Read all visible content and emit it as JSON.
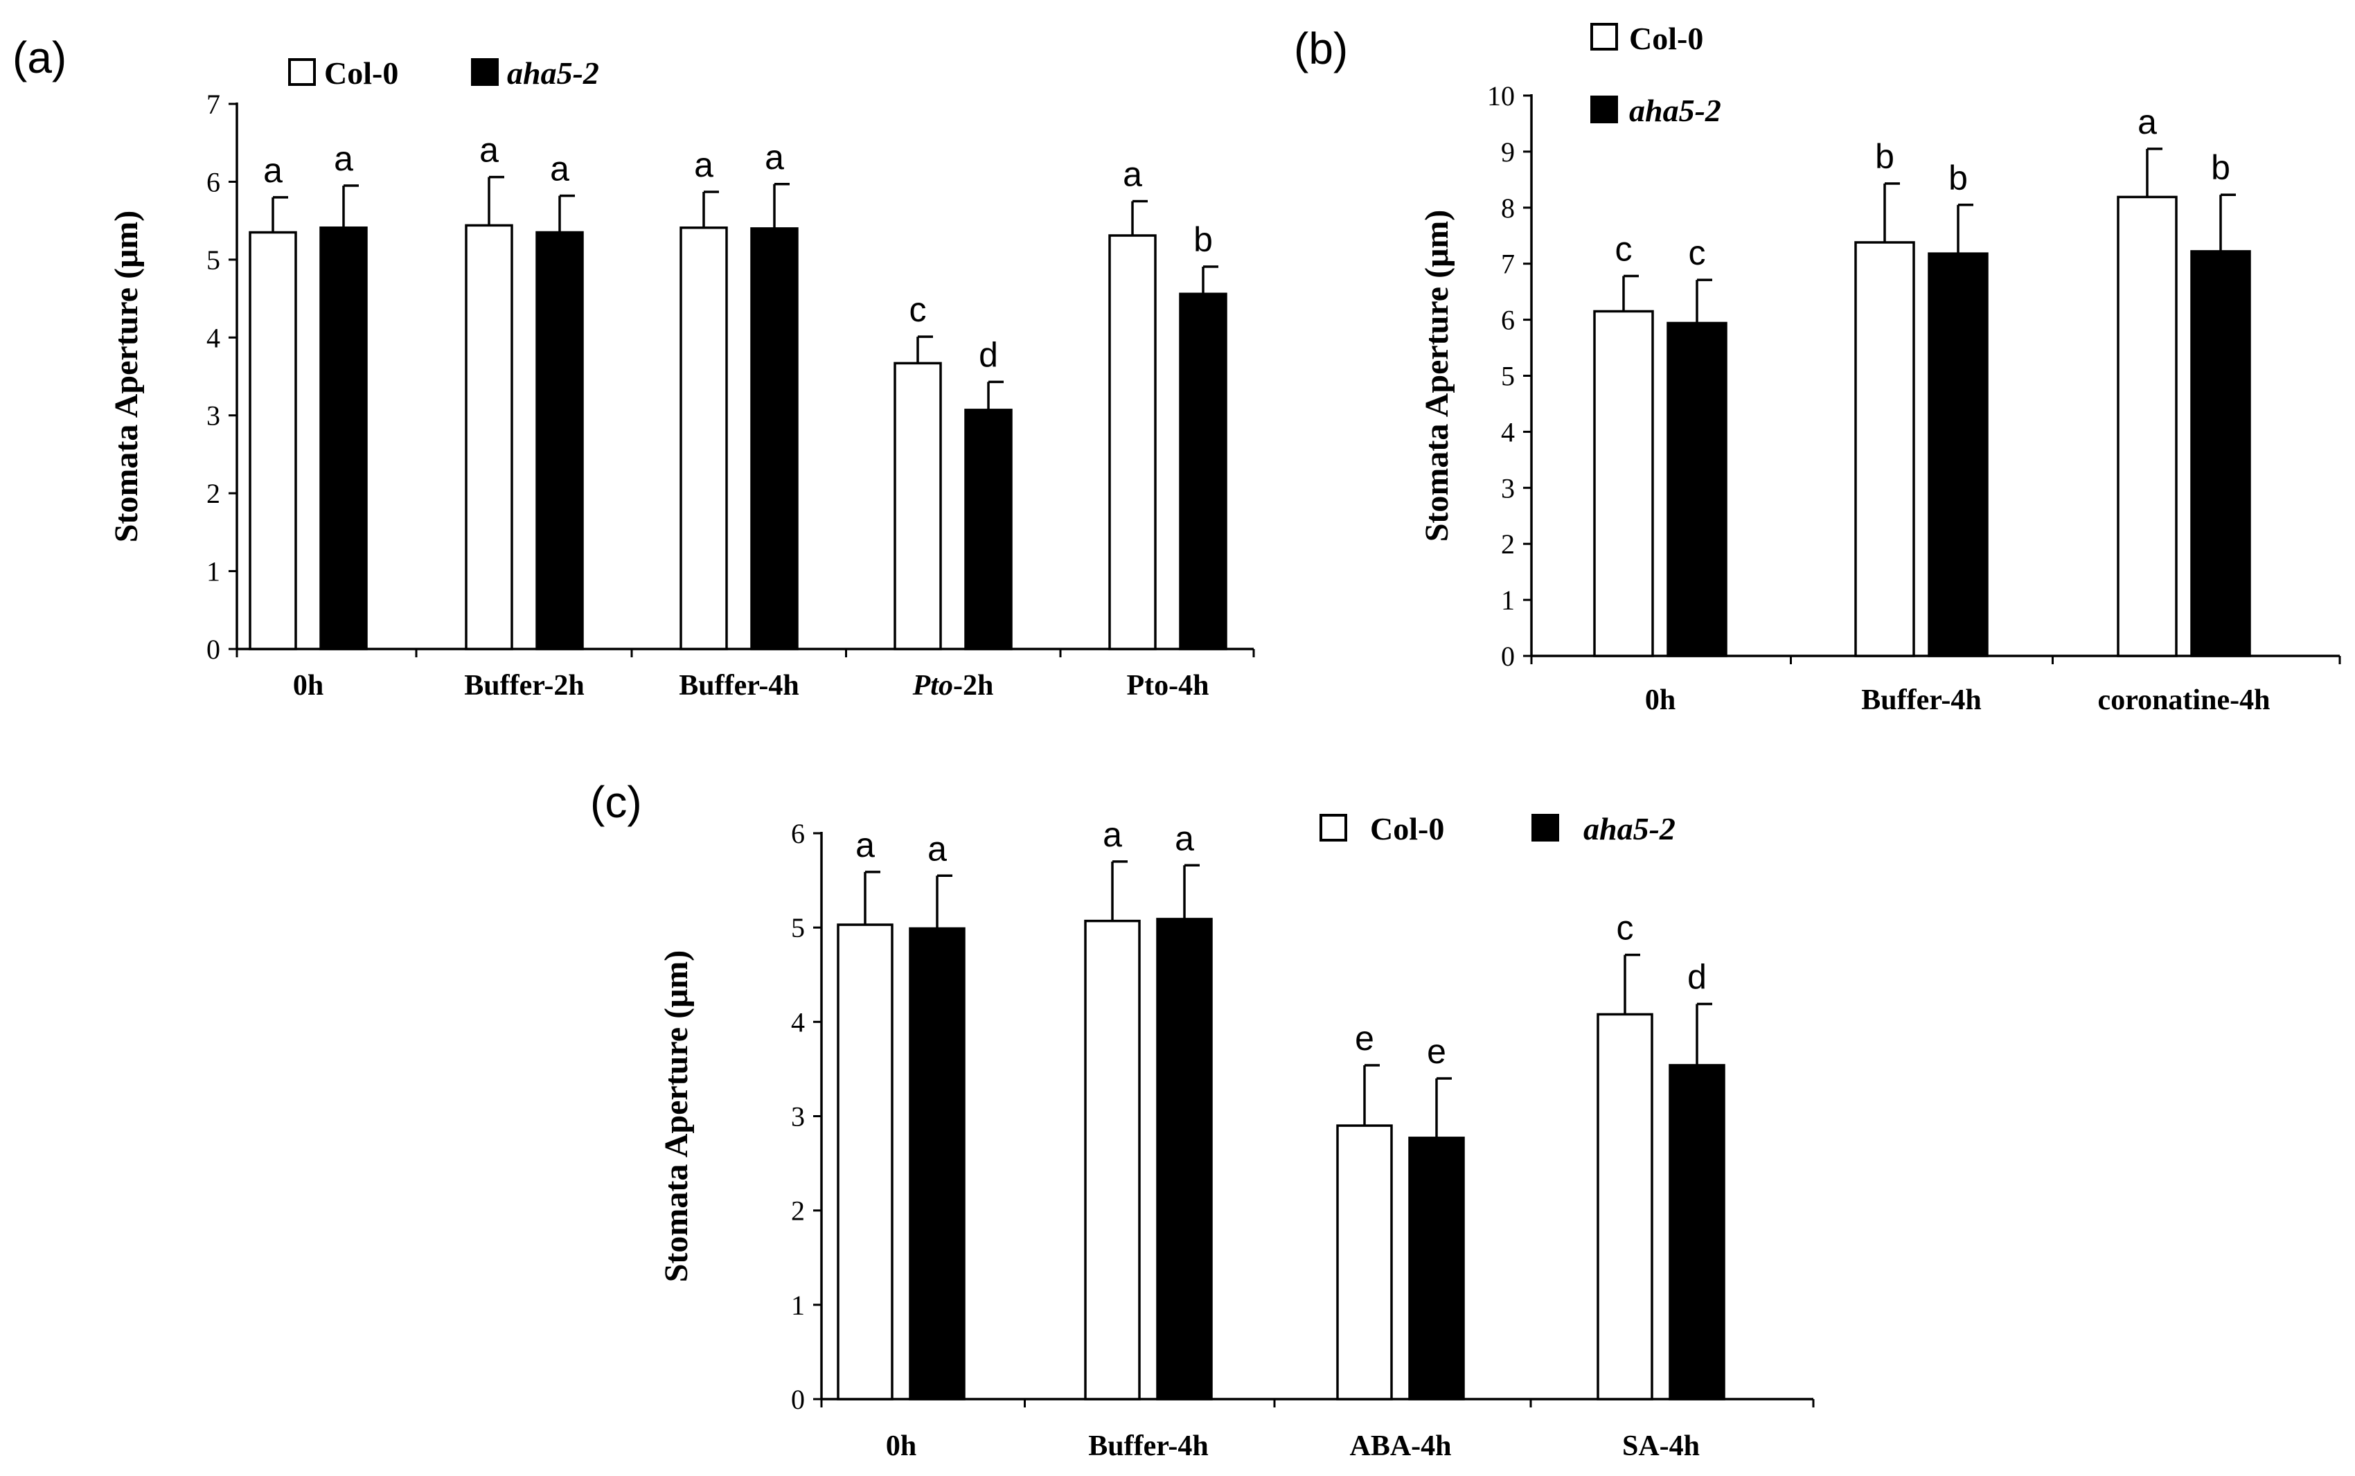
{
  "chart_data": [
    {
      "type": "bar",
      "panel_label": "(a)",
      "ylabel": "Stomata Aperture (μm)",
      "ylim": [
        0,
        7
      ],
      "yticks": [
        "0",
        "1",
        "2",
        "3",
        "4",
        "5",
        "6",
        "7"
      ],
      "categories": [
        {
          "label": "0h",
          "italic_part": "",
          "rest": "0h"
        },
        {
          "label": "Buffer-2h",
          "italic_part": "",
          "rest": "Buffer-2h"
        },
        {
          "label": "Buffer-4h",
          "italic_part": "",
          "rest": "Buffer-4h"
        },
        {
          "label": "Pto-2h",
          "italic_part": "Pto",
          "rest": "-2h"
        },
        {
          "label": "Pto-4h",
          "italic_part": "",
          "rest": "Pto-4h"
        }
      ],
      "legend": [
        "Col-0",
        "aha5-2"
      ],
      "legend_position": "top-left",
      "series": [
        {
          "name": "Col-0",
          "color": "#ffffff",
          "values": [
            5.35,
            5.44,
            5.41,
            3.67,
            5.31
          ],
          "errors": [
            0.45,
            0.62,
            0.46,
            0.34,
            0.44
          ],
          "letters": [
            "a",
            "a",
            "a",
            "c",
            "a"
          ]
        },
        {
          "name": "aha5-2",
          "color": "#000000",
          "values": [
            5.41,
            5.35,
            5.4,
            3.07,
            4.56
          ],
          "errors": [
            0.54,
            0.47,
            0.57,
            0.36,
            0.35
          ],
          "letters": [
            "a",
            "a",
            "a",
            "d",
            "b"
          ]
        }
      ]
    },
    {
      "type": "bar",
      "panel_label": "(b)",
      "ylabel": "Stomata Aperture (μm)",
      "ylim": [
        0,
        10
      ],
      "yticks": [
        "0",
        "1",
        "2",
        "3",
        "4",
        "5",
        "6",
        "7",
        "8",
        "9",
        "10"
      ],
      "categories": [
        {
          "label": "0h",
          "italic_part": "",
          "rest": "0h"
        },
        {
          "label": "Buffer-4h",
          "italic_part": "",
          "rest": "Buffer-4h"
        },
        {
          "label": "coronatine-4h",
          "italic_part": "",
          "rest": "coronatine-4h"
        }
      ],
      "legend": [
        "Col-0",
        "aha5-2"
      ],
      "legend_position": "top-left",
      "series": [
        {
          "name": "Col-0",
          "color": "#ffffff",
          "values": [
            6.15,
            7.38,
            8.19
          ],
          "errors": [
            0.63,
            1.05,
            0.86
          ],
          "letters": [
            "c",
            "b",
            "a"
          ]
        },
        {
          "name": "aha5-2",
          "color": "#000000",
          "values": [
            5.94,
            7.18,
            7.22
          ],
          "errors": [
            0.77,
            0.87,
            1.01
          ],
          "letters": [
            "c",
            "b",
            "b"
          ]
        }
      ]
    },
    {
      "type": "bar",
      "panel_label": "(c)",
      "ylabel": "Stomata Aperture (μm)",
      "ylim": [
        0,
        6
      ],
      "yticks": [
        "0",
        "1",
        "2",
        "3",
        "4",
        "5",
        "6"
      ],
      "categories": [
        {
          "label": "0h",
          "italic_part": "",
          "rest": "0h"
        },
        {
          "label": "Buffer-4h",
          "italic_part": "",
          "rest": "Buffer-4h"
        },
        {
          "label": "ABA-4h",
          "italic_part": "",
          "rest": "ABA-4h"
        },
        {
          "label": "SA-4h",
          "italic_part": "",
          "rest": "SA-4h"
        }
      ],
      "legend": [
        "Col-0",
        "aha5-2"
      ],
      "legend_position": "top-right",
      "series": [
        {
          "name": "Col-0",
          "color": "#ffffff",
          "values": [
            5.03,
            5.07,
            2.9,
            4.08
          ],
          "errors": [
            0.56,
            0.63,
            0.64,
            0.63
          ],
          "letters": [
            "a",
            "a",
            "e",
            "c"
          ]
        },
        {
          "name": "aha5-2",
          "color": "#000000",
          "values": [
            4.99,
            5.09,
            2.77,
            3.54
          ],
          "errors": [
            0.56,
            0.57,
            0.63,
            0.65
          ],
          "letters": [
            "a",
            "a",
            "e",
            "d"
          ]
        }
      ]
    }
  ]
}
